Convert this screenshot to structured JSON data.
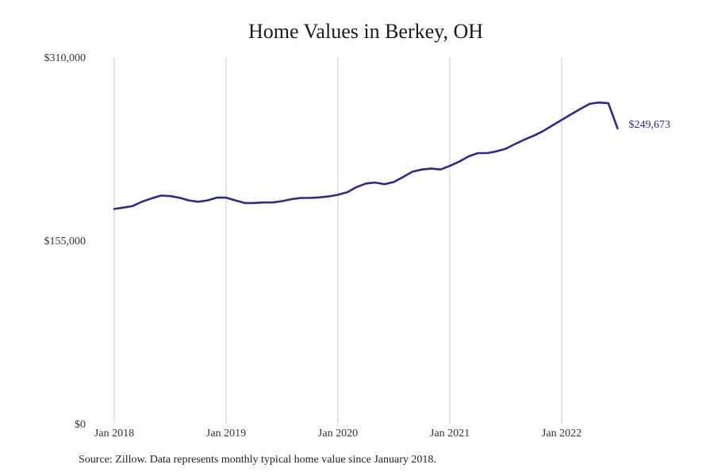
{
  "chart_data": {
    "type": "line",
    "title": "Home Values in Berkey, OH",
    "xlabel": "",
    "ylabel": "",
    "ylim": [
      0,
      310000
    ],
    "yticks": [
      {
        "value": 0,
        "label": "$0"
      },
      {
        "value": 155000,
        "label": "$155,000"
      },
      {
        "value": 310000,
        "label": "$310,000"
      }
    ],
    "xticks": [
      "Jan 2018",
      "Jan 2019",
      "Jan 2020",
      "Jan 2021",
      "Jan 2022"
    ],
    "grid": "vertical",
    "line_color": "#2e2a8c",
    "end_label": "$249,673",
    "series": [
      {
        "x": [
          "2018-01",
          "2018-02",
          "2018-03",
          "2018-04",
          "2018-05",
          "2018-06",
          "2018-07",
          "2018-08",
          "2018-09",
          "2018-10",
          "2018-11",
          "2018-12",
          "2019-01",
          "2019-02",
          "2019-03",
          "2019-04",
          "2019-05",
          "2019-06",
          "2019-07",
          "2019-08",
          "2019-09",
          "2019-10",
          "2019-11",
          "2019-12",
          "2020-01",
          "2020-02",
          "2020-03",
          "2020-04",
          "2020-05",
          "2020-06",
          "2020-07",
          "2020-08",
          "2020-09",
          "2020-10",
          "2020-11",
          "2020-12",
          "2021-01",
          "2021-02",
          "2021-03",
          "2021-04",
          "2021-05",
          "2021-06",
          "2021-07",
          "2021-08",
          "2021-09",
          "2021-10",
          "2021-11",
          "2021-12",
          "2022-01",
          "2022-02",
          "2022-03",
          "2022-04",
          "2022-05",
          "2022-06",
          "2022-07"
        ],
        "values": [
          181600,
          182700,
          184100,
          187800,
          190500,
          192900,
          192500,
          191000,
          188800,
          187700,
          188800,
          191200,
          191200,
          188800,
          186600,
          186600,
          187100,
          187100,
          188200,
          189800,
          190900,
          190900,
          191400,
          192200,
          193600,
          195700,
          200100,
          203100,
          203900,
          202500,
          204400,
          208700,
          213100,
          214900,
          215800,
          214900,
          218000,
          221600,
          226000,
          228800,
          228800,
          230300,
          232500,
          236500,
          240200,
          243500,
          247400,
          252200,
          256900,
          261600,
          266100,
          270500,
          271600,
          271000,
          249673
        ]
      }
    ]
  },
  "source_note": "Source: Zillow. Data represents monthly typical home value since January 2018."
}
